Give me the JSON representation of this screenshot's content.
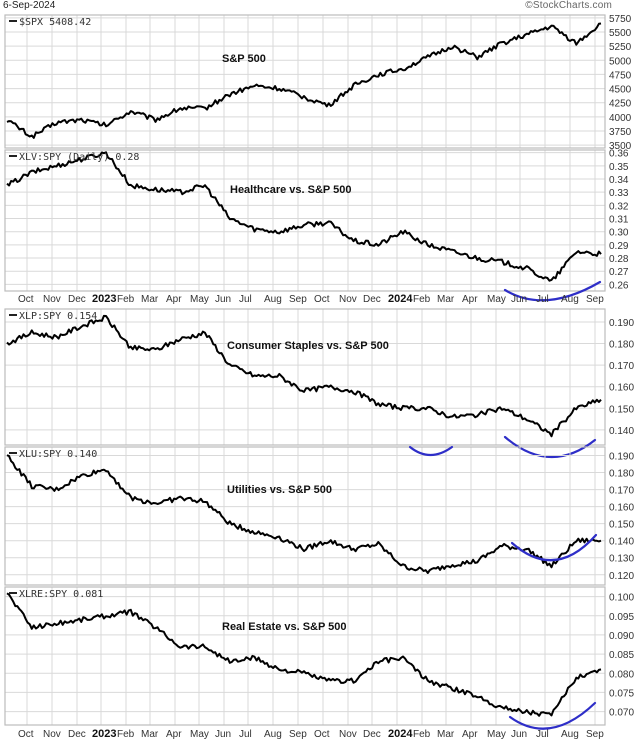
{
  "header": {
    "date": "6-Sep-2024",
    "source_logo": "©StockCharts.com"
  },
  "chart_data": [
    {
      "type": "line",
      "id": "spx",
      "legend": "$SPX 5408.42",
      "title": "S&P 500",
      "ylabel": "",
      "yticks": [
        3500,
        3750,
        4000,
        4250,
        4500,
        4750,
        5000,
        5250,
        5500,
        5750
      ],
      "ylim": [
        3450,
        5800
      ],
      "x": [
        "2022-09",
        "2022-10",
        "2022-11",
        "2022-12",
        "2023-01",
        "2023-02",
        "2023-03",
        "2023-04",
        "2023-05",
        "2023-06",
        "2023-07",
        "2023-08",
        "2023-09",
        "2023-10",
        "2023-11",
        "2023-12",
        "2024-01",
        "2024-02",
        "2024-03",
        "2024-04",
        "2024-05",
        "2024-06",
        "2024-07",
        "2024-08",
        "2024-09"
      ],
      "values": [
        3950,
        3650,
        3900,
        3950,
        3850,
        4100,
        3950,
        4150,
        4150,
        4400,
        4550,
        4500,
        4350,
        4200,
        4550,
        4750,
        4850,
        5050,
        5250,
        5050,
        5300,
        5450,
        5600,
        5300,
        5650
      ],
      "last_value": 5408.42
    },
    {
      "type": "line",
      "id": "xlv_spy",
      "legend": "XLV:SPY (Daily) 0.28",
      "title": "Healthcare vs. S&P 500",
      "yticks": [
        0.26,
        0.27,
        0.28,
        0.29,
        0.3,
        0.31,
        0.32,
        0.33,
        0.34,
        0.35,
        0.36
      ],
      "ylim": [
        0.255,
        0.362
      ],
      "x": [
        "2022-09",
        "2022-10",
        "2022-11",
        "2022-12",
        "2023-01",
        "2023-02",
        "2023-03",
        "2023-04",
        "2023-05",
        "2023-06",
        "2023-07",
        "2023-08",
        "2023-09",
        "2023-10",
        "2023-11",
        "2023-12",
        "2024-01",
        "2024-02",
        "2024-03",
        "2024-04",
        "2024-05",
        "2024-06",
        "2024-07",
        "2024-08",
        "2024-09"
      ],
      "values": [
        0.335,
        0.345,
        0.35,
        0.355,
        0.36,
        0.335,
        0.332,
        0.33,
        0.335,
        0.31,
        0.302,
        0.3,
        0.305,
        0.307,
        0.293,
        0.29,
        0.3,
        0.29,
        0.285,
        0.28,
        0.277,
        0.272,
        0.262,
        0.285,
        0.283
      ],
      "last_value": 0.28,
      "annotation": "blue arc under Jun-Aug 2024 (bottoming)"
    },
    {
      "type": "line",
      "id": "xlp_spy",
      "legend": "XLP:SPY 0.154",
      "title": "Consumer Staples vs. S&P 500",
      "yticks": [
        0.14,
        0.15,
        0.16,
        0.17,
        0.18,
        0.19
      ],
      "ylim": [
        0.133,
        0.196
      ],
      "x": [
        "2022-09",
        "2022-10",
        "2022-11",
        "2022-12",
        "2023-01",
        "2023-02",
        "2023-03",
        "2023-04",
        "2023-05",
        "2023-06",
        "2023-07",
        "2023-08",
        "2023-09",
        "2023-10",
        "2023-11",
        "2023-12",
        "2024-01",
        "2024-02",
        "2024-03",
        "2024-04",
        "2024-05",
        "2024-06",
        "2024-07",
        "2024-08",
        "2024-09"
      ],
      "values": [
        0.18,
        0.185,
        0.183,
        0.188,
        0.192,
        0.178,
        0.177,
        0.182,
        0.185,
        0.17,
        0.165,
        0.165,
        0.158,
        0.16,
        0.158,
        0.152,
        0.15,
        0.15,
        0.146,
        0.147,
        0.15,
        0.145,
        0.138,
        0.15,
        0.154
      ],
      "last_value": 0.154,
      "annotation": "blue arc under Jun-Aug 2024 (bottoming)"
    },
    {
      "type": "line",
      "id": "xlu_spy",
      "legend": "XLU:SPY 0.140",
      "title": "Utilities vs. S&P 500",
      "yticks": [
        0.12,
        0.13,
        0.14,
        0.15,
        0.16,
        0.17,
        0.18,
        0.19
      ],
      "ylim": [
        0.114,
        0.195
      ],
      "x": [
        "2022-09",
        "2022-10",
        "2022-11",
        "2022-12",
        "2023-01",
        "2023-02",
        "2023-03",
        "2023-04",
        "2023-05",
        "2023-06",
        "2023-07",
        "2023-08",
        "2023-09",
        "2023-10",
        "2023-11",
        "2023-12",
        "2024-01",
        "2024-02",
        "2024-03",
        "2024-04",
        "2024-05",
        "2024-06",
        "2024-07",
        "2024-08",
        "2024-09"
      ],
      "values": [
        0.19,
        0.172,
        0.17,
        0.178,
        0.182,
        0.165,
        0.162,
        0.165,
        0.163,
        0.15,
        0.145,
        0.142,
        0.135,
        0.14,
        0.135,
        0.138,
        0.125,
        0.122,
        0.126,
        0.128,
        0.137,
        0.135,
        0.125,
        0.14,
        0.14
      ],
      "last_value": 0.14,
      "annotation": "blue arcs under Oct 2023 and Jun-Aug 2024"
    },
    {
      "type": "line",
      "id": "xlre_spy",
      "legend": "XLRE:SPY 0.081",
      "title": "Real Estate vs. S&P 500",
      "yticks": [
        0.07,
        0.075,
        0.08,
        0.085,
        0.09,
        0.095,
        0.1
      ],
      "ylim": [
        0.0665,
        0.1025
      ],
      "xticks": [
        "Oct",
        "Nov",
        "Dec",
        "2023",
        "Feb",
        "Mar",
        "Apr",
        "May",
        "Jun",
        "Jul",
        "Aug",
        "Sep",
        "Oct",
        "Nov",
        "Dec",
        "2024",
        "Feb",
        "Mar",
        "Apr",
        "May",
        "Jun",
        "Jul",
        "Aug",
        "Sep"
      ],
      "x": [
        "2022-09",
        "2022-10",
        "2022-11",
        "2022-12",
        "2023-01",
        "2023-02",
        "2023-03",
        "2023-04",
        "2023-05",
        "2023-06",
        "2023-07",
        "2023-08",
        "2023-09",
        "2023-10",
        "2023-11",
        "2023-12",
        "2024-01",
        "2024-02",
        "2024-03",
        "2024-04",
        "2024-05",
        "2024-06",
        "2024-07",
        "2024-08",
        "2024-09"
      ],
      "values": [
        0.101,
        0.092,
        0.093,
        0.094,
        0.095,
        0.096,
        0.092,
        0.087,
        0.087,
        0.083,
        0.084,
        0.081,
        0.08,
        0.078,
        0.078,
        0.083,
        0.084,
        0.078,
        0.076,
        0.074,
        0.071,
        0.07,
        0.069,
        0.079,
        0.081
      ],
      "last_value": 0.081,
      "annotation": "blue arc under Jun-Aug 2024 (bottoming)"
    }
  ],
  "xaxis": {
    "labels": [
      "Oct",
      "Nov",
      "Dec",
      "2023",
      "Feb",
      "Mar",
      "Apr",
      "May",
      "Jun",
      "Jul",
      "Aug",
      "Sep",
      "Oct",
      "Nov",
      "Dec",
      "2024",
      "Feb",
      "Mar",
      "Apr",
      "May",
      "Jun",
      "Jul",
      "Aug",
      "Sep"
    ],
    "year_labels": [
      "2023",
      "2024"
    ]
  },
  "annotation_color": "#2e2ec8"
}
